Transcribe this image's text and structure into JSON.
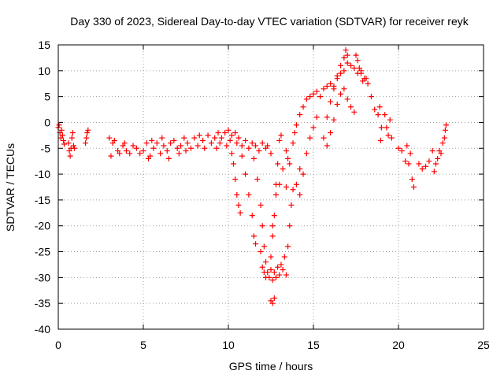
{
  "chart_data": {
    "type": "scatter",
    "title": "Day 330 of 2023, Sidereal Day-to-day VTEC variation (SDTVAR) for receiver reyk",
    "xlabel": "GPS time / hours",
    "ylabel": "SDTVAR / TECUs",
    "xlim": [
      0,
      25
    ],
    "ylim": [
      -40,
      15
    ],
    "xticks": [
      "0",
      "5",
      "10",
      "15",
      "20",
      "25"
    ],
    "yticks": [
      "-40",
      "-35",
      "-30",
      "-25",
      "-20",
      "-15",
      "-10",
      "-5",
      "0",
      "5",
      "10",
      "15"
    ],
    "grid": true,
    "marker": "plus",
    "color": "#ff0000",
    "series": [
      {
        "name": "SDTVAR",
        "points": [
          [
            0.0,
            -1.0
          ],
          [
            0.05,
            -0.5
          ],
          [
            0.1,
            -2.0
          ],
          [
            0.15,
            -3.0
          ],
          [
            0.2,
            -1.5
          ],
          [
            0.25,
            -2.5
          ],
          [
            0.3,
            -3.5
          ],
          [
            0.35,
            -4.2
          ],
          [
            0.6,
            -4.0
          ],
          [
            0.65,
            -5.5
          ],
          [
            0.7,
            -6.5
          ],
          [
            0.75,
            -5.0
          ],
          [
            0.8,
            -3.0
          ],
          [
            0.85,
            -2.0
          ],
          [
            0.9,
            -4.5
          ],
          [
            0.95,
            -5.0
          ],
          [
            1.6,
            -4.0
          ],
          [
            1.65,
            -3.0
          ],
          [
            1.7,
            -2.0
          ],
          [
            1.75,
            -1.5
          ],
          [
            3.0,
            -3.0
          ],
          [
            3.1,
            -6.5
          ],
          [
            3.2,
            -4.0
          ],
          [
            3.3,
            -3.5
          ],
          [
            3.5,
            -5.5
          ],
          [
            3.6,
            -6.0
          ],
          [
            3.8,
            -4.5
          ],
          [
            3.9,
            -4.0
          ],
          [
            4.0,
            -5.5
          ],
          [
            4.2,
            -6.0
          ],
          [
            4.4,
            -4.5
          ],
          [
            4.6,
            -5.0
          ],
          [
            4.8,
            -6.0
          ],
          [
            5.0,
            -5.5
          ],
          [
            5.2,
            -4.0
          ],
          [
            5.3,
            -7.0
          ],
          [
            5.4,
            -6.5
          ],
          [
            5.5,
            -3.5
          ],
          [
            5.6,
            -5.0
          ],
          [
            5.8,
            -4.0
          ],
          [
            6.0,
            -6.0
          ],
          [
            6.1,
            -3.0
          ],
          [
            6.2,
            -4.5
          ],
          [
            6.4,
            -5.5
          ],
          [
            6.5,
            -7.0
          ],
          [
            6.6,
            -4.0
          ],
          [
            6.8,
            -3.5
          ],
          [
            7.0,
            -5.0
          ],
          [
            7.1,
            -6.0
          ],
          [
            7.2,
            -4.5
          ],
          [
            7.4,
            -3.0
          ],
          [
            7.5,
            -5.5
          ],
          [
            7.6,
            -4.0
          ],
          [
            7.8,
            -5.0
          ],
          [
            8.0,
            -3.0
          ],
          [
            8.2,
            -4.5
          ],
          [
            8.3,
            -2.5
          ],
          [
            8.5,
            -3.5
          ],
          [
            8.6,
            -5.0
          ],
          [
            8.8,
            -2.5
          ],
          [
            9.0,
            -4.0
          ],
          [
            9.2,
            -3.0
          ],
          [
            9.3,
            -5.0
          ],
          [
            9.4,
            -2.0
          ],
          [
            9.5,
            -4.0
          ],
          [
            9.6,
            -3.0
          ],
          [
            9.8,
            -2.0
          ],
          [
            9.9,
            -4.5
          ],
          [
            10.0,
            -1.5
          ],
          [
            10.1,
            -3.5
          ],
          [
            10.2,
            -2.5
          ],
          [
            10.4,
            -2.0
          ],
          [
            10.5,
            -4.0
          ],
          [
            10.6,
            -3.0
          ],
          [
            10.8,
            -4.5
          ],
          [
            11.0,
            -3.5
          ],
          [
            11.2,
            -5.0
          ],
          [
            11.4,
            -4.0
          ],
          [
            11.6,
            -4.5
          ],
          [
            11.8,
            -5.5
          ],
          [
            12.0,
            -4.0
          ],
          [
            12.2,
            -5.0
          ],
          [
            12.3,
            -4.5
          ],
          [
            12.5,
            -6.0
          ],
          [
            10.2,
            -6.0
          ],
          [
            10.3,
            -8.0
          ],
          [
            10.4,
            -11.0
          ],
          [
            10.5,
            -14.0
          ],
          [
            10.6,
            -16.0
          ],
          [
            10.7,
            -17.5
          ],
          [
            10.8,
            -6.5
          ],
          [
            11.0,
            -10.0
          ],
          [
            11.2,
            -14.0
          ],
          [
            11.4,
            -18.0
          ],
          [
            11.5,
            -22.0
          ],
          [
            11.6,
            -23.5
          ],
          [
            11.5,
            -7.0
          ],
          [
            11.7,
            -11.0
          ],
          [
            11.9,
            -16.0
          ],
          [
            12.0,
            -20.0
          ],
          [
            12.1,
            -24.0
          ],
          [
            12.2,
            -27.0
          ],
          [
            11.9,
            -25.0
          ],
          [
            12.0,
            -28.0
          ],
          [
            12.1,
            -29.0
          ],
          [
            12.2,
            -30.0
          ],
          [
            12.3,
            -29.0
          ],
          [
            12.4,
            -30.0
          ],
          [
            12.5,
            -28.5
          ],
          [
            12.6,
            -30.5
          ],
          [
            12.7,
            -29.0
          ],
          [
            12.8,
            -30.0
          ],
          [
            12.9,
            -28.0
          ],
          [
            13.0,
            -29.5
          ],
          [
            13.1,
            -27.5
          ],
          [
            13.2,
            -28.5
          ],
          [
            13.3,
            -26.0
          ],
          [
            13.4,
            -29.5
          ],
          [
            12.5,
            -26.0
          ],
          [
            12.6,
            -22.0
          ],
          [
            12.7,
            -18.0
          ],
          [
            12.8,
            -12.0
          ],
          [
            12.9,
            -8.0
          ],
          [
            13.0,
            -3.5
          ],
          [
            13.1,
            -2.5
          ],
          [
            12.6,
            -20.0
          ],
          [
            12.8,
            -14.0
          ],
          [
            13.0,
            -12.0
          ],
          [
            13.2,
            -9.0
          ],
          [
            13.4,
            -5.5
          ],
          [
            13.5,
            -7.0
          ],
          [
            12.5,
            -34.5
          ],
          [
            12.6,
            -35.0
          ],
          [
            12.7,
            -34.0
          ],
          [
            13.5,
            -24.0
          ],
          [
            13.6,
            -20.0
          ],
          [
            13.7,
            -16.0
          ],
          [
            13.8,
            -13.0
          ],
          [
            14.0,
            -12.0
          ],
          [
            14.2,
            -9.0
          ],
          [
            13.4,
            -12.5
          ],
          [
            13.6,
            -8.0
          ],
          [
            13.8,
            -4.0
          ],
          [
            13.9,
            -2.0
          ],
          [
            14.0,
            -0.5
          ],
          [
            14.2,
            1.5
          ],
          [
            14.4,
            3.0
          ],
          [
            14.6,
            4.5
          ],
          [
            14.8,
            5.0
          ],
          [
            15.0,
            5.5
          ],
          [
            15.2,
            6.0
          ],
          [
            15.4,
            5.0
          ],
          [
            15.6,
            6.5
          ],
          [
            15.8,
            7.0
          ],
          [
            16.0,
            7.5
          ],
          [
            16.2,
            6.5
          ],
          [
            16.4,
            8.5
          ],
          [
            16.6,
            9.5
          ],
          [
            16.8,
            10.0
          ],
          [
            17.0,
            11.5
          ],
          [
            17.2,
            11.0
          ],
          [
            17.4,
            10.5
          ],
          [
            17.6,
            9.5
          ],
          [
            17.8,
            10.0
          ],
          [
            18.0,
            8.5
          ],
          [
            14.2,
            -14.0
          ],
          [
            14.4,
            -10.0
          ],
          [
            14.6,
            -6.0
          ],
          [
            14.8,
            -3.0
          ],
          [
            15.0,
            -1.0
          ],
          [
            15.2,
            1.0
          ],
          [
            15.6,
            -3.0
          ],
          [
            15.8,
            1.0
          ],
          [
            16.0,
            4.0
          ],
          [
            16.2,
            7.0
          ],
          [
            16.4,
            9.0
          ],
          [
            16.6,
            11.0
          ],
          [
            16.8,
            12.5
          ],
          [
            16.9,
            14.0
          ],
          [
            17.0,
            13.0
          ],
          [
            15.8,
            -4.5
          ],
          [
            16.0,
            -2.0
          ],
          [
            16.2,
            0.5
          ],
          [
            16.4,
            3.5
          ],
          [
            16.6,
            5.5
          ],
          [
            16.8,
            6.5
          ],
          [
            17.0,
            4.5
          ],
          [
            17.2,
            3.0
          ],
          [
            17.4,
            2.0
          ],
          [
            17.5,
            13.0
          ],
          [
            17.6,
            12.0
          ],
          [
            17.7,
            10.5
          ],
          [
            17.8,
            9.5
          ],
          [
            17.9,
            8.0
          ],
          [
            18.1,
            8.5
          ],
          [
            18.2,
            7.5
          ],
          [
            18.4,
            5.0
          ],
          [
            18.6,
            2.5
          ],
          [
            18.8,
            1.5
          ],
          [
            18.9,
            3.0
          ],
          [
            19.0,
            -1.0
          ],
          [
            18.95,
            -3.5
          ],
          [
            19.2,
            1.5
          ],
          [
            19.3,
            -1.0
          ],
          [
            19.4,
            -2.5
          ],
          [
            19.5,
            0.5
          ],
          [
            19.6,
            -3.0
          ],
          [
            20.0,
            -5.0
          ],
          [
            20.2,
            -5.5
          ],
          [
            20.4,
            -7.5
          ],
          [
            20.6,
            -8.0
          ],
          [
            20.7,
            -6.0
          ],
          [
            20.8,
            -11.0
          ],
          [
            20.9,
            -12.5
          ],
          [
            20.5,
            -4.5
          ],
          [
            21.2,
            -8.0
          ],
          [
            21.4,
            -9.0
          ],
          [
            21.6,
            -8.5
          ],
          [
            21.8,
            -7.5
          ],
          [
            22.0,
            -5.5
          ],
          [
            22.1,
            -9.5
          ],
          [
            22.2,
            -8.0
          ],
          [
            22.3,
            -7.0
          ],
          [
            22.4,
            -5.5
          ],
          [
            22.5,
            -6.0
          ],
          [
            22.6,
            -4.0
          ],
          [
            22.7,
            -3.0
          ],
          [
            22.75,
            -1.5
          ],
          [
            22.8,
            -0.5
          ]
        ]
      }
    ]
  }
}
